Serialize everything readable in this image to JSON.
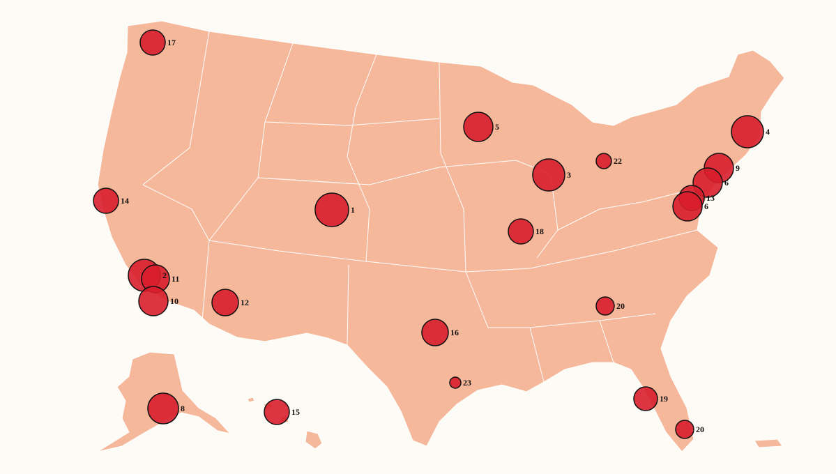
{
  "markers": [
    {
      "label": 17
    },
    {
      "label": 5
    },
    {
      "label": 4
    },
    {
      "label": 22
    },
    {
      "label": 3
    },
    {
      "label": 9
    },
    {
      "label": 6
    },
    {
      "label": 13
    },
    {
      "label": 6
    },
    {
      "label": 14
    },
    {
      "label": 1
    },
    {
      "label": 18
    },
    {
      "label": 2
    },
    {
      "label": 11
    },
    {
      "label": 10
    },
    {
      "label": 12
    },
    {
      "label": 20
    },
    {
      "label": 16
    },
    {
      "label": 23
    },
    {
      "label": 19
    },
    {
      "label": 8
    },
    {
      "label": 15
    },
    {
      "label": 20
    }
  ]
}
